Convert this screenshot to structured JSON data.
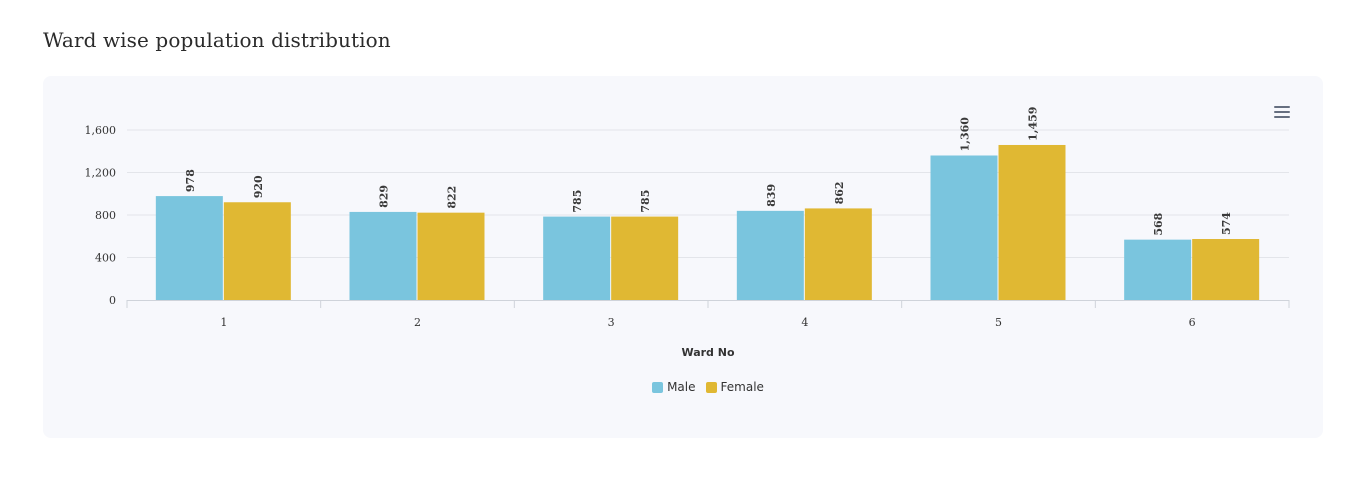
{
  "page": {
    "title": "Ward wise population distribution"
  },
  "chart_data": {
    "type": "bar",
    "categories": [
      "1",
      "2",
      "3",
      "4",
      "5",
      "6"
    ],
    "series": [
      {
        "name": "Male",
        "values": [
          978,
          829,
          785,
          839,
          1360,
          568
        ],
        "color": "#7ac5de"
      },
      {
        "name": "Female",
        "values": [
          920,
          822,
          785,
          862,
          1459,
          574
        ],
        "color": "#e0b833"
      }
    ],
    "data_labels": [
      [
        "978",
        "829",
        "785",
        "839",
        "1,360",
        "568"
      ],
      [
        "920",
        "822",
        "785",
        "862",
        "1,459",
        "574"
      ]
    ],
    "y_ticks": [
      0,
      400,
      800,
      1200,
      1600
    ],
    "y_tick_labels": [
      "0",
      "400",
      "800",
      "1,200",
      "1,600"
    ],
    "ylim": [
      0,
      1600
    ],
    "xlabel": "Ward No",
    "ylabel": "",
    "grid": true,
    "legend_position": "bottom-center"
  },
  "toolbar": {
    "menu_icon": "hamburger-menu-icon"
  }
}
